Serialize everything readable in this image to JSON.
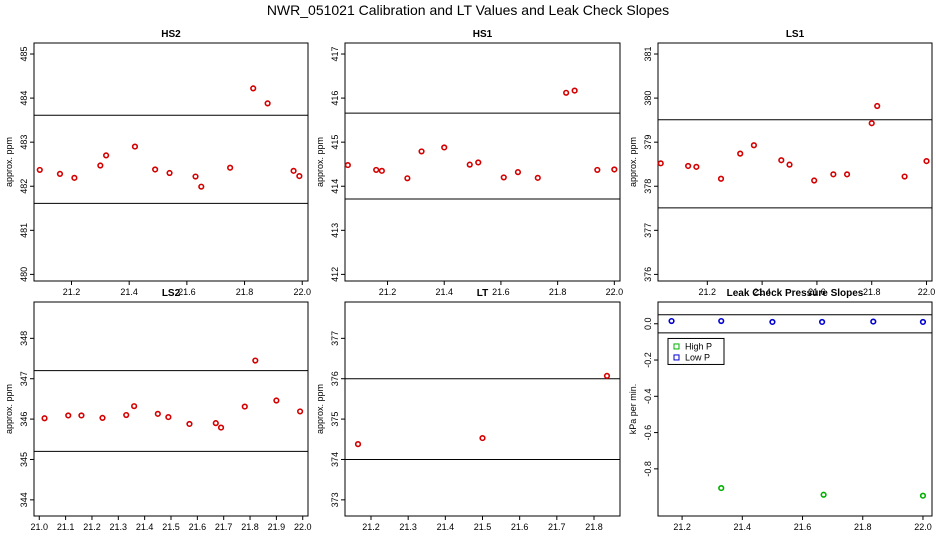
{
  "title": "NWR_051021  Calibration and LT Values and Leak Check Slopes",
  "chart_data": [
    {
      "type": "scatter",
      "title": "HS2",
      "ylabel": "approx. ppm",
      "xlim": [
        21.07,
        22.02
      ],
      "ylim": [
        479.85,
        485.25
      ],
      "xticks": [
        21.2,
        21.4,
        21.6,
        21.8,
        22.0
      ],
      "xticklabels": [
        "21.2",
        "21.4",
        "21.6",
        "21.8",
        "22.0"
      ],
      "yticks": [
        480,
        481,
        482,
        483,
        484,
        485
      ],
      "yticklabels": [
        "480",
        "481",
        "482",
        "483",
        "484",
        "485"
      ],
      "hlines": [
        483.61,
        481.61
      ],
      "series": [
        {
          "color": "#d40000",
          "x": [
            21.09,
            21.16,
            21.21,
            21.3,
            21.32,
            21.42,
            21.49,
            21.54,
            21.63,
            21.65,
            21.75,
            21.83,
            21.88,
            21.97,
            21.99
          ],
          "y": [
            482.37,
            482.28,
            482.19,
            482.47,
            482.7,
            482.9,
            482.38,
            482.3,
            482.22,
            481.99,
            482.42,
            484.22,
            483.88,
            482.35,
            482.23
          ]
        }
      ]
    },
    {
      "type": "scatter",
      "title": "HS1",
      "ylabel": "approx. ppm",
      "xlim": [
        21.05,
        22.02
      ],
      "ylim": [
        411.85,
        417.25
      ],
      "xticks": [
        21.2,
        21.4,
        21.6,
        21.8,
        22.0
      ],
      "xticklabels": [
        "21.2",
        "21.4",
        "21.6",
        "21.8",
        "22.0"
      ],
      "yticks": [
        412,
        413,
        414,
        415,
        416,
        417
      ],
      "yticklabels": [
        "412",
        "413",
        "414",
        "415",
        "416",
        "417"
      ],
      "hlines": [
        415.66,
        413.71
      ],
      "series": [
        {
          "color": "#d40000",
          "x": [
            21.06,
            21.16,
            21.18,
            21.27,
            21.32,
            21.4,
            21.49,
            21.52,
            21.61,
            21.66,
            21.73,
            21.83,
            21.86,
            21.94,
            22.0
          ],
          "y": [
            414.48,
            414.37,
            414.35,
            414.18,
            414.79,
            414.88,
            414.49,
            414.54,
            414.2,
            414.32,
            414.19,
            416.12,
            416.17,
            414.37,
            414.38
          ]
        }
      ]
    },
    {
      "type": "scatter",
      "title": "LS1",
      "ylabel": "approx. ppm",
      "xlim": [
        21.02,
        22.02
      ],
      "ylim": [
        375.85,
        381.25
      ],
      "xticks": [
        21.2,
        21.4,
        21.6,
        21.8,
        22.0
      ],
      "xticklabels": [
        "21.2",
        "21.4",
        "21.6",
        "21.8",
        "22.0"
      ],
      "yticks": [
        376,
        377,
        378,
        379,
        380,
        381
      ],
      "yticklabels": [
        "376",
        "377",
        "378",
        "379",
        "380",
        "381"
      ],
      "hlines": [
        379.51,
        377.51
      ],
      "series": [
        {
          "color": "#d40000",
          "x": [
            21.03,
            21.13,
            21.16,
            21.25,
            21.32,
            21.37,
            21.47,
            21.5,
            21.59,
            21.66,
            21.71,
            21.8,
            21.82,
            21.92,
            22.0
          ],
          "y": [
            378.52,
            378.46,
            378.44,
            378.17,
            378.74,
            378.93,
            378.59,
            378.49,
            378.13,
            378.27,
            378.27,
            379.43,
            379.82,
            378.22,
            378.57
          ]
        }
      ]
    },
    {
      "type": "scatter",
      "title": "LS2",
      "ylabel": "approx. ppm",
      "xlim": [
        20.98,
        22.02
      ],
      "ylim": [
        343.6,
        348.9
      ],
      "xticks": [
        21.0,
        21.1,
        21.2,
        21.3,
        21.4,
        21.5,
        21.6,
        21.7,
        21.8,
        21.9,
        22.0
      ],
      "xticklabels": [
        "21.0",
        "21.1",
        "21.2",
        "21.3",
        "21.4",
        "21.5",
        "21.6",
        "21.7",
        "21.8",
        "21.9",
        "22.0"
      ],
      "yticks": [
        344,
        345,
        346,
        347,
        348
      ],
      "yticklabels": [
        "344",
        "345",
        "346",
        "347",
        "348"
      ],
      "hlines": [
        347.2,
        345.2
      ],
      "series": [
        {
          "color": "#d40000",
          "x": [
            21.02,
            21.11,
            21.16,
            21.24,
            21.33,
            21.36,
            21.45,
            21.49,
            21.57,
            21.67,
            21.69,
            21.78,
            21.82,
            21.9,
            21.99
          ],
          "y": [
            346.02,
            346.09,
            346.09,
            346.03,
            346.1,
            346.32,
            346.13,
            346.05,
            345.88,
            345.9,
            345.79,
            346.31,
            347.45,
            346.46,
            346.19
          ]
        }
      ]
    },
    {
      "type": "scatter",
      "title": "LT",
      "ylabel": "approx. ppm",
      "xlim": [
        21.13,
        21.87
      ],
      "ylim": [
        372.6,
        377.9
      ],
      "xticks": [
        21.2,
        21.3,
        21.4,
        21.5,
        21.6,
        21.7,
        21.8
      ],
      "xticklabels": [
        "21.2",
        "21.3",
        "21.4",
        "21.5",
        "21.6",
        "21.7",
        "21.8"
      ],
      "yticks": [
        373,
        374,
        375,
        376,
        377
      ],
      "yticklabels": [
        "373",
        "374",
        "375",
        "376",
        "377"
      ],
      "hlines": [
        376.0,
        374.0
      ],
      "series": [
        {
          "color": "#d40000",
          "x": [
            21.165,
            21.5,
            21.835
          ],
          "y": [
            374.38,
            374.53,
            376.07
          ]
        }
      ]
    },
    {
      "type": "scatter",
      "title": "Leak Check Pressure Slopes",
      "ylabel": "kPa per min.",
      "xlim": [
        21.12,
        22.03
      ],
      "ylim": [
        -1.06,
        0.12
      ],
      "xticks": [
        21.2,
        21.4,
        21.6,
        21.8,
        22.0
      ],
      "xticklabels": [
        "21.2",
        "21.4",
        "21.6",
        "21.8",
        "22.0"
      ],
      "yticks": [
        0.0,
        -0.2,
        -0.4,
        -0.6,
        -0.8
      ],
      "yticklabels": [
        "0.0",
        "-0.2",
        "-0.4",
        "-0.6",
        "-0.8"
      ],
      "hlines": [
        0.05,
        -0.05
      ],
      "legend": {
        "position": "top-left",
        "entries": [
          "High P",
          "Low P"
        ]
      },
      "series": [
        {
          "name": "High P",
          "color": "#00b000",
          "x": [
            21.33,
            21.67,
            22.0
          ],
          "y": [
            -0.906,
            -0.943,
            -0.948
          ]
        },
        {
          "name": "Low P",
          "color": "#0000d0",
          "x": [
            21.165,
            21.33,
            21.5,
            21.665,
            21.835,
            22.0
          ],
          "y": [
            0.015,
            0.015,
            0.01,
            0.01,
            0.012,
            0.01
          ]
        }
      ]
    }
  ]
}
